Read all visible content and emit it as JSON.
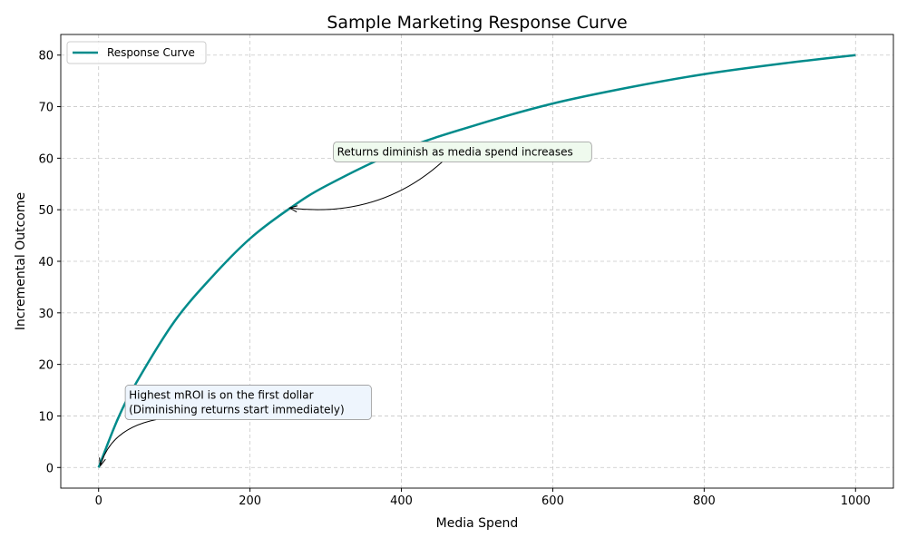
{
  "chart_data": {
    "type": "line",
    "title": "Sample Marketing Response Curve",
    "xlabel": "Media Spend",
    "ylabel": "Incremental Outcome",
    "xlim": [
      -50,
      1050
    ],
    "ylim": [
      -4,
      84
    ],
    "xticks": [
      0,
      200,
      400,
      600,
      800,
      1000
    ],
    "yticks": [
      0,
      10,
      20,
      30,
      40,
      50,
      60,
      70,
      80
    ],
    "grid": true,
    "grid_style": "dashed",
    "legend_position": "top-left",
    "series": [
      {
        "name": "Response Curve",
        "color": "#008b8b",
        "x": [
          0,
          25,
          50,
          100,
          150,
          200,
          250,
          300,
          400,
          500,
          600,
          700,
          800,
          900,
          1000
        ],
        "y": [
          0,
          9.3,
          16.5,
          28.3,
          37.0,
          44.4,
          50.0,
          54.6,
          61.6,
          66.5,
          70.6,
          73.7,
          76.3,
          78.3,
          80.0
        ]
      }
    ],
    "annotations": [
      {
        "text_lines": [
          "Highest mROI is on the first dollar",
          "(Diminishing returns start immediately)"
        ],
        "xy": [
          0,
          0
        ],
        "xytext": [
          40,
          10
        ],
        "box_color": "#eef5fd"
      },
      {
        "text_lines": [
          "Returns diminish as media spend increases"
        ],
        "xy": [
          250,
          50
        ],
        "xytext": [
          315,
          60
        ],
        "box_color": "#effaee"
      }
    ]
  }
}
